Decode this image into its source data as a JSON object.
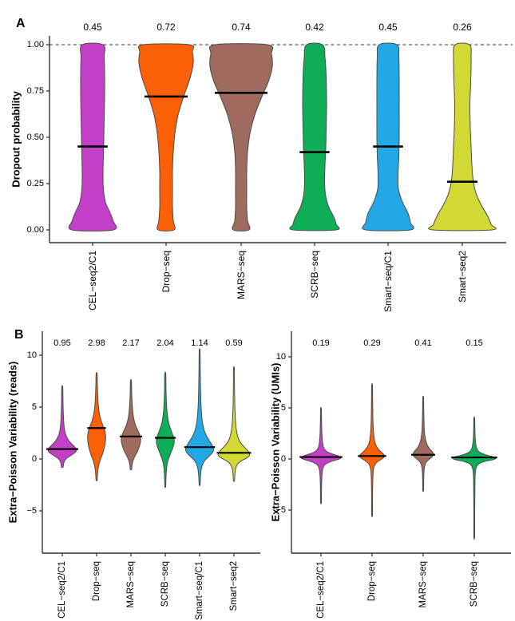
{
  "figure": {
    "panel_a_label": "A",
    "panel_b_label": "B"
  },
  "palette": {
    "cel_seq2_c1": "#C33FC7",
    "drop_seq": "#FB6007",
    "mars_seq": "#9E6B5E",
    "scrb_seq": "#0EAE56",
    "smart_seq_c1": "#22A9E5",
    "smart_seq2": "#D2D934",
    "outline": "#4a4a4a",
    "axis": "#333333",
    "median": "#000000"
  },
  "chart_data": [
    {
      "id": "dropout",
      "type": "violin",
      "panel": "A",
      "title": "",
      "xlabel": "",
      "ylabel": "Dropout probability",
      "ylim": [
        0,
        1.05
      ],
      "grid": false,
      "dashed_line_value": 1.0,
      "yticks": [
        {
          "label": "1.00",
          "value": 1.0
        },
        {
          "label": "0.75",
          "value": 0.75
        },
        {
          "label": "0.50",
          "value": 0.5
        },
        {
          "label": "0.25",
          "value": 0.25
        },
        {
          "label": "0.00",
          "value": 0.0
        }
      ],
      "categories": [
        "CEL−seq2/C1",
        "Drop−seq",
        "MARS−seq",
        "SCRB−seq",
        "Smart−seq/C1",
        "Smart−seq2"
      ],
      "colors": [
        "#C33FC7",
        "#FB6007",
        "#9E6B5E",
        "#0EAE56",
        "#22A9E5",
        "#D2D934"
      ],
      "medians": [
        0.45,
        0.72,
        0.74,
        0.42,
        0.45,
        0.26
      ],
      "annotations": [
        "0.45",
        "0.72",
        "0.74",
        "0.42",
        "0.45",
        "0.26"
      ],
      "violin_shapes": [
        [
          [
            1.0,
            13
          ],
          [
            0.93,
            14.5
          ],
          [
            0.85,
            15
          ],
          [
            0.72,
            15
          ],
          [
            0.6,
            14.5
          ],
          [
            0.5,
            14
          ],
          [
            0.4,
            13.5
          ],
          [
            0.3,
            13
          ],
          [
            0.22,
            13.5
          ],
          [
            0.15,
            16
          ],
          [
            0.1,
            21
          ],
          [
            0.05,
            25.5
          ],
          [
            0.0,
            26
          ]
        ],
        [
          [
            1.0,
            29
          ],
          [
            0.96,
            33
          ],
          [
            0.9,
            34
          ],
          [
            0.82,
            30
          ],
          [
            0.72,
            22
          ],
          [
            0.62,
            15
          ],
          [
            0.52,
            11
          ],
          [
            0.42,
            9
          ],
          [
            0.32,
            8
          ],
          [
            0.22,
            8
          ],
          [
            0.12,
            8
          ],
          [
            0.05,
            9
          ],
          [
            0.0,
            10
          ]
        ],
        [
          [
            1.0,
            33
          ],
          [
            0.95,
            38
          ],
          [
            0.88,
            39
          ],
          [
            0.8,
            34
          ],
          [
            0.72,
            26
          ],
          [
            0.62,
            17
          ],
          [
            0.52,
            11
          ],
          [
            0.42,
            8
          ],
          [
            0.32,
            7
          ],
          [
            0.22,
            7
          ],
          [
            0.12,
            7
          ],
          [
            0.05,
            8
          ],
          [
            0.0,
            10
          ]
        ],
        [
          [
            1.0,
            10
          ],
          [
            0.93,
            13
          ],
          [
            0.82,
            14.5
          ],
          [
            0.68,
            15
          ],
          [
            0.55,
            14.5
          ],
          [
            0.45,
            14
          ],
          [
            0.35,
            13
          ],
          [
            0.25,
            12.5
          ],
          [
            0.18,
            14
          ],
          [
            0.12,
            18
          ],
          [
            0.07,
            24
          ],
          [
            0.03,
            27
          ],
          [
            0.0,
            27
          ]
        ],
        [
          [
            1.0,
            11
          ],
          [
            0.93,
            13.5
          ],
          [
            0.8,
            14
          ],
          [
            0.65,
            14
          ],
          [
            0.5,
            14
          ],
          [
            0.4,
            13.5
          ],
          [
            0.3,
            12.5
          ],
          [
            0.22,
            13
          ],
          [
            0.15,
            18
          ],
          [
            0.09,
            25
          ],
          [
            0.04,
            28
          ],
          [
            0.0,
            28
          ]
        ],
        [
          [
            1.0,
            9
          ],
          [
            0.93,
            11
          ],
          [
            0.8,
            10.5
          ],
          [
            0.68,
            9.5
          ],
          [
            0.55,
            10
          ],
          [
            0.45,
            11
          ],
          [
            0.35,
            12
          ],
          [
            0.27,
            13.5
          ],
          [
            0.2,
            17
          ],
          [
            0.14,
            23
          ],
          [
            0.08,
            31
          ],
          [
            0.03,
            36
          ],
          [
            0.0,
            37
          ]
        ]
      ]
    },
    {
      "id": "epv_reads",
      "type": "violin",
      "panel": "B-left",
      "title": "",
      "xlabel": "",
      "ylabel": "Extra−Poisson Variability (reads)",
      "ylim": [
        -9,
        11.5
      ],
      "grid": false,
      "yticks": [
        {
          "label": "10",
          "value": 10
        },
        {
          "label": "5",
          "value": 5
        },
        {
          "label": "0",
          "value": 0
        },
        {
          "label": "−5",
          "value": -5
        }
      ],
      "categories": [
        "CEL−seq2/C1",
        "Drop−seq",
        "MARS−seq",
        "SCRB−seq",
        "Smart−seq/C1",
        "Smart−seq2"
      ],
      "colors": [
        "#C33FC7",
        "#FB6007",
        "#9E6B5E",
        "#0EAE56",
        "#22A9E5",
        "#D2D934"
      ],
      "medians": [
        0.95,
        2.98,
        2.17,
        2.04,
        1.14,
        0.59
      ],
      "annotations": [
        "0.95",
        "2.98",
        "2.17",
        "2.04",
        "1.14",
        "0.59"
      ],
      "violin_shapes": [
        [
          [
            6.9,
            0.6
          ],
          [
            5.5,
            0.9
          ],
          [
            4.2,
            1.4
          ],
          [
            3.2,
            2.2
          ],
          [
            2.4,
            4
          ],
          [
            1.9,
            7
          ],
          [
            1.5,
            11
          ],
          [
            1.2,
            15
          ],
          [
            0.95,
            17.5
          ],
          [
            0.7,
            17
          ],
          [
            0.45,
            13
          ],
          [
            0.2,
            8
          ],
          [
            0.0,
            4.5
          ],
          [
            -0.3,
            2.2
          ],
          [
            -0.55,
            1.5
          ],
          [
            -0.8,
            0.9
          ]
        ],
        [
          [
            8.2,
            0.6
          ],
          [
            7,
            1
          ],
          [
            5.8,
            1.6
          ],
          [
            4.8,
            2.6
          ],
          [
            4.0,
            4.5
          ],
          [
            3.4,
            7
          ],
          [
            2.9,
            9.5
          ],
          [
            2.4,
            11
          ],
          [
            1.9,
            11.2
          ],
          [
            1.4,
            10.5
          ],
          [
            0.9,
            9
          ],
          [
            0.4,
            7
          ],
          [
            0.0,
            5
          ],
          [
            -0.5,
            3
          ],
          [
            -1.1,
            1.6
          ],
          [
            -1.6,
            1.0
          ],
          [
            -2.05,
            0.7
          ]
        ],
        [
          [
            7.5,
            0.6
          ],
          [
            6.2,
            1
          ],
          [
            5,
            1.8
          ],
          [
            4,
            3.2
          ],
          [
            3.2,
            6
          ],
          [
            2.7,
            9
          ],
          [
            2.2,
            11.5
          ],
          [
            1.7,
            12
          ],
          [
            1.2,
            10.5
          ],
          [
            0.7,
            8
          ],
          [
            0.2,
            4.5
          ],
          [
            -0.2,
            2.4
          ],
          [
            -0.6,
            1.3
          ],
          [
            -1.0,
            0.8
          ]
        ],
        [
          [
            8.2,
            0.6
          ],
          [
            6.8,
            0.9
          ],
          [
            5.5,
            1.4
          ],
          [
            4.4,
            2.4
          ],
          [
            3.5,
            4.2
          ],
          [
            2.8,
            7
          ],
          [
            2.3,
            9.5
          ],
          [
            1.9,
            11
          ],
          [
            1.5,
            11
          ],
          [
            1.1,
            9.5
          ],
          [
            0.7,
            7.5
          ],
          [
            0.3,
            5.5
          ],
          [
            -0.2,
            3.2
          ],
          [
            -0.8,
            1.8
          ],
          [
            -1.6,
            1.0
          ],
          [
            -2.3,
            0.7
          ],
          [
            -2.7,
            0.5
          ]
        ],
        [
          [
            10.4,
            0.5
          ],
          [
            8.5,
            0.8
          ],
          [
            7,
            1.1
          ],
          [
            5.5,
            1.6
          ],
          [
            4.4,
            2.4
          ],
          [
            3.5,
            3.6
          ],
          [
            2.7,
            6
          ],
          [
            2.1,
            9.5
          ],
          [
            1.6,
            13.5
          ],
          [
            1.2,
            16.5
          ],
          [
            0.9,
            17.5
          ],
          [
            0.6,
            16
          ],
          [
            0.2,
            11
          ],
          [
            -0.2,
            6
          ],
          [
            -0.7,
            3
          ],
          [
            -1.3,
            1.5
          ],
          [
            -1.9,
            0.9
          ],
          [
            -2.5,
            0.6
          ]
        ],
        [
          [
            8.7,
            0.5
          ],
          [
            7,
            0.7
          ],
          [
            5.5,
            1
          ],
          [
            4.2,
            1.5
          ],
          [
            3.2,
            2.4
          ],
          [
            2.4,
            4
          ],
          [
            1.8,
            6.5
          ],
          [
            1.3,
            11
          ],
          [
            0.9,
            16
          ],
          [
            0.6,
            19
          ],
          [
            0.35,
            19.5
          ],
          [
            0.1,
            16
          ],
          [
            -0.2,
            9
          ],
          [
            -0.5,
            4.5
          ],
          [
            -0.9,
            2.2
          ],
          [
            -1.5,
            1.1
          ],
          [
            -2.1,
            0.7
          ]
        ]
      ]
    },
    {
      "id": "epv_umis",
      "type": "violin",
      "panel": "B-right",
      "title": "",
      "xlabel": "",
      "ylabel": "Extra−Poisson Variability (UMIs)",
      "ylim": [
        -9,
        11.5
      ],
      "grid": false,
      "yticks": [
        {
          "label": "10",
          "value": 10
        },
        {
          "label": "5",
          "value": 5
        },
        {
          "label": "0",
          "value": 0
        },
        {
          "label": "−5",
          "value": -5
        }
      ],
      "categories": [
        "CEL−seq2/C1",
        "Drop−seq",
        "MARS−seq",
        "SCRB−seq"
      ],
      "colors": [
        "#C33FC7",
        "#FB6007",
        "#9E6B5E",
        "#0EAE56"
      ],
      "medians": [
        0.19,
        0.29,
        0.41,
        0.15
      ],
      "annotations": [
        "0.19",
        "0.29",
        "0.41",
        "0.15"
      ],
      "violin_shapes": [
        [
          [
            4.9,
            0.5
          ],
          [
            3.8,
            0.7
          ],
          [
            2.8,
            1
          ],
          [
            2,
            1.5
          ],
          [
            1.4,
            2.4
          ],
          [
            1.0,
            4
          ],
          [
            0.7,
            8
          ],
          [
            0.5,
            14
          ],
          [
            0.32,
            21
          ],
          [
            0.18,
            24.5
          ],
          [
            0.05,
            24
          ],
          [
            -0.1,
            19
          ],
          [
            -0.3,
            11
          ],
          [
            -0.55,
            5
          ],
          [
            -0.9,
            2.4
          ],
          [
            -1.5,
            1.3
          ],
          [
            -2.5,
            0.8
          ],
          [
            -3.5,
            0.6
          ],
          [
            -4.3,
            0.5
          ]
        ],
        [
          [
            7.2,
            0.5
          ],
          [
            5.8,
            0.7
          ],
          [
            4.6,
            0.9
          ],
          [
            3.5,
            1.2
          ],
          [
            2.6,
            1.8
          ],
          [
            1.9,
            2.8
          ],
          [
            1.4,
            4.5
          ],
          [
            1.0,
            7.5
          ],
          [
            0.7,
            11
          ],
          [
            0.45,
            14.5
          ],
          [
            0.25,
            15.5
          ],
          [
            0.05,
            13
          ],
          [
            -0.15,
            9
          ],
          [
            -0.4,
            5
          ],
          [
            -0.7,
            2.8
          ],
          [
            -1.1,
            1.6
          ],
          [
            -1.8,
            1.0
          ],
          [
            -3,
            0.7
          ],
          [
            -4.3,
            0.6
          ],
          [
            -5.5,
            0.5
          ]
        ],
        [
          [
            6.0,
            0.5
          ],
          [
            4.8,
            0.7
          ],
          [
            3.8,
            1
          ],
          [
            2.9,
            1.4
          ],
          [
            2.2,
            2.2
          ],
          [
            1.7,
            3.5
          ],
          [
            1.3,
            5.5
          ],
          [
            1.0,
            8
          ],
          [
            0.75,
            11
          ],
          [
            0.55,
            12.5
          ],
          [
            0.38,
            12.5
          ],
          [
            0.2,
            11
          ],
          [
            0.0,
            8
          ],
          [
            -0.25,
            4.5
          ],
          [
            -0.55,
            2.4
          ],
          [
            -1.0,
            1.3
          ],
          [
            -1.7,
            0.8
          ],
          [
            -2.5,
            0.6
          ],
          [
            -3.1,
            0.5
          ]
        ],
        [
          [
            4.0,
            0.5
          ],
          [
            3.2,
            0.7
          ],
          [
            2.5,
            0.9
          ],
          [
            1.9,
            1.3
          ],
          [
            1.4,
            2
          ],
          [
            1.0,
            3.2
          ],
          [
            0.7,
            6
          ],
          [
            0.5,
            11
          ],
          [
            0.33,
            18
          ],
          [
            0.18,
            26
          ],
          [
            0.05,
            27
          ],
          [
            -0.08,
            23
          ],
          [
            -0.25,
            13
          ],
          [
            -0.45,
            6
          ],
          [
            -0.75,
            2.8
          ],
          [
            -1.2,
            1.5
          ],
          [
            -2,
            0.9
          ],
          [
            -3.5,
            0.7
          ],
          [
            -5.5,
            0.55
          ],
          [
            -7.6,
            0.45
          ]
        ]
      ]
    }
  ]
}
